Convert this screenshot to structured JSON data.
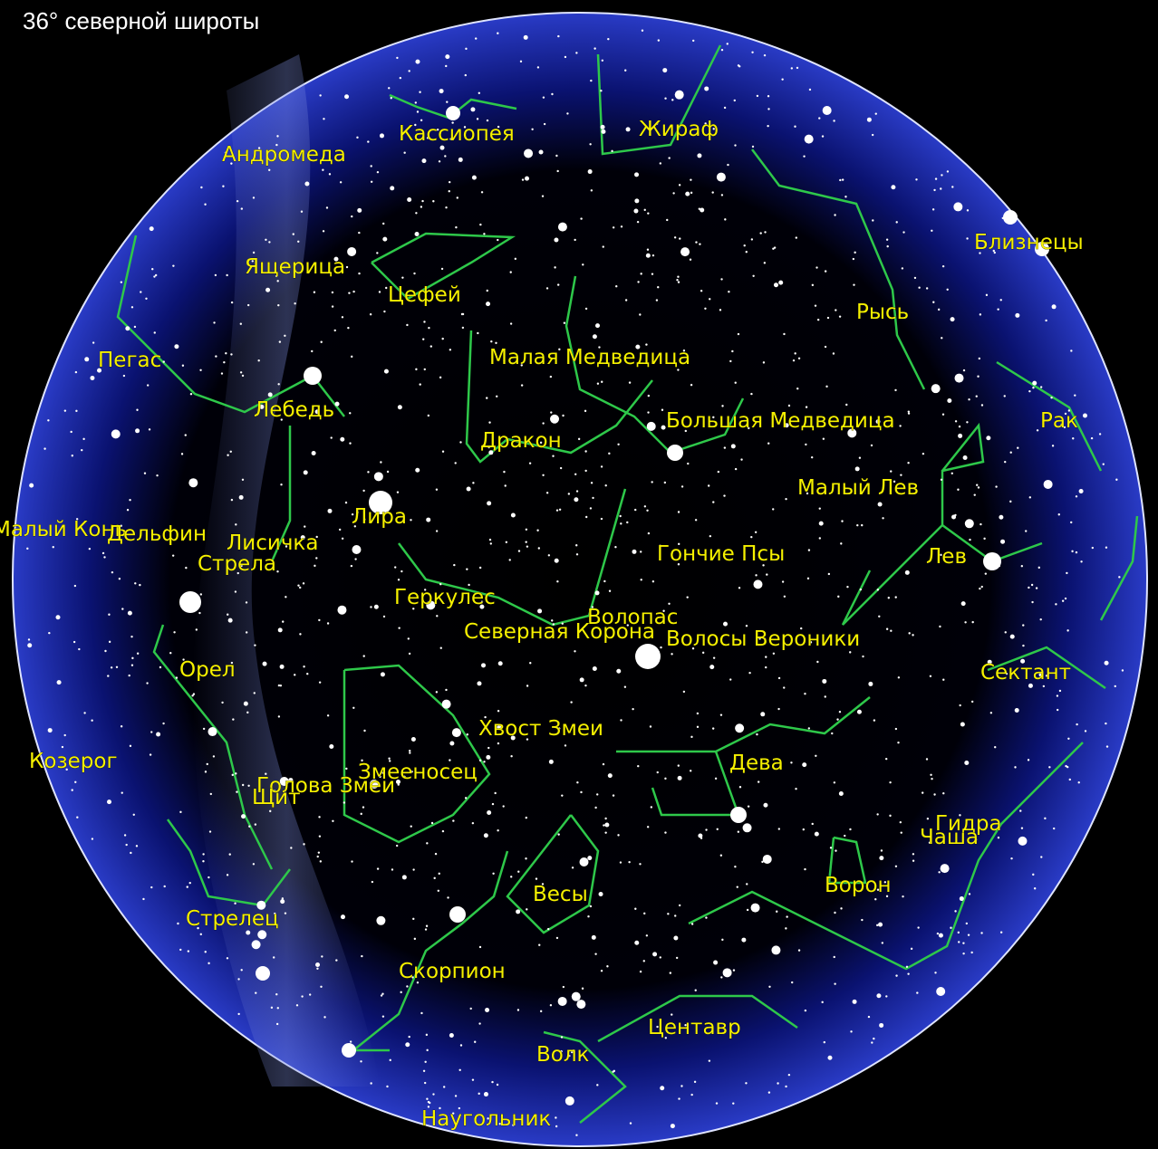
{
  "title": "36° северной широты",
  "labels": [
    "Кассиопея",
    "Жираф",
    "Андромеда",
    "Близнецы",
    "Ящерица",
    "Цефей",
    "Рысь",
    "Пегас",
    "Малая Медведица",
    "Лебедь",
    "Большая Медведица",
    "Рак",
    "Дракон",
    "Малый Лев",
    "Лира",
    "Малый Конь",
    "Дельфин",
    "Лисичка",
    "Стрела",
    "Гончие Псы",
    "Лев",
    "Геркулес",
    "Волопас",
    "Северная Корона",
    "Волосы Вероники",
    "Сектант",
    "Орел",
    "Хвост Змеи",
    "Козерог",
    "Дева",
    "Змееносец",
    "Голова Змеи",
    "Щит",
    "Гидра",
    "Чаша",
    "Ворон",
    "Весы",
    "Стрелец",
    "Скорпион",
    "Центавр",
    "Волк",
    "Наугольник"
  ]
}
